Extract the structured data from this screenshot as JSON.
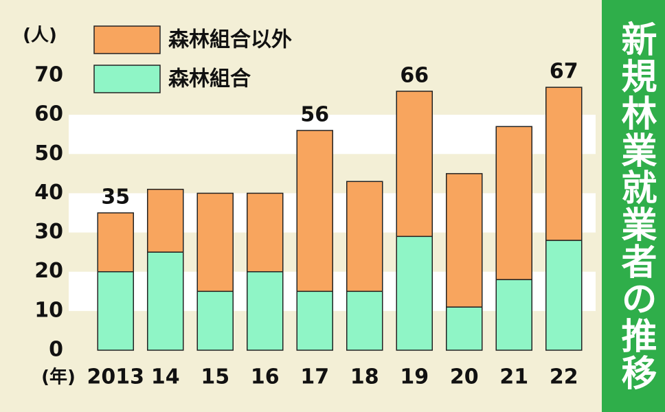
{
  "chart_data": {
    "type": "stacked_bar",
    "title": "新規林業就業者の推移",
    "y_unit": "(人)",
    "x_unit": "(年)",
    "categories": [
      "2013",
      "14",
      "15",
      "16",
      "17",
      "18",
      "19",
      "20",
      "21",
      "22"
    ],
    "series": [
      {
        "name": "森林組合",
        "color": "#8ff5c6",
        "values": [
          20,
          25,
          15,
          20,
          15,
          15,
          29,
          11,
          18,
          28
        ]
      },
      {
        "name": "森林組合以外",
        "color": "#f8a55e",
        "values": [
          15,
          16,
          25,
          20,
          41,
          28,
          37,
          34,
          39,
          39
        ]
      }
    ],
    "total_labels": [
      35,
      null,
      null,
      null,
      56,
      null,
      66,
      null,
      null,
      67
    ],
    "ylim": [
      0,
      70
    ],
    "yticks": [
      0,
      10,
      20,
      30,
      40,
      50,
      60,
      70
    ],
    "grid": "bands",
    "title_color": "#2fae4a"
  }
}
